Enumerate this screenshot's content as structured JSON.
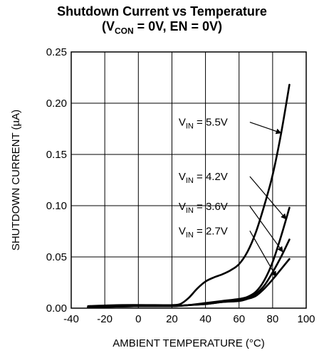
{
  "chart_data": {
    "type": "line",
    "title": "Shutdown Current vs Temperature",
    "subtitle": {
      "open": "(V",
      "sub": "CON",
      "rest": " = 0V, EN = 0V)"
    },
    "xlabel": "AMBIENT TEMPERATURE (°C)",
    "ylabel": "SHUTDOWN CURRENT (µA)",
    "xlim": [
      -40,
      100
    ],
    "ylim": [
      0,
      0.25
    ],
    "xticks": [
      -40,
      -20,
      0,
      20,
      40,
      60,
      80,
      100
    ],
    "yticks": [
      0.0,
      0.05,
      0.1,
      0.15,
      0.2,
      0.25
    ],
    "xtick_labels": [
      "-40",
      "-20",
      "0",
      "20",
      "40",
      "60",
      "80",
      "100"
    ],
    "ytick_labels": [
      "0.00",
      "0.05",
      "0.10",
      "0.15",
      "0.20",
      "0.25"
    ],
    "grid": true,
    "series": [
      {
        "name": "5.5V",
        "x": [
          -30,
          -10,
          10,
          20,
          25,
          30,
          35,
          40,
          45,
          50,
          55,
          60,
          65,
          70,
          75,
          80,
          85,
          90
        ],
        "y": [
          0.002,
          0.003,
          0.003,
          0.003,
          0.004,
          0.01,
          0.019,
          0.026,
          0.03,
          0.033,
          0.037,
          0.043,
          0.055,
          0.074,
          0.1,
          0.13,
          0.17,
          0.218
        ]
      },
      {
        "name": "4.2V",
        "x": [
          -30,
          0,
          20,
          30,
          40,
          50,
          60,
          65,
          70,
          75,
          80,
          85,
          90
        ],
        "y": [
          0.001,
          0.002,
          0.002,
          0.003,
          0.005,
          0.007,
          0.009,
          0.011,
          0.016,
          0.027,
          0.045,
          0.07,
          0.098
        ]
      },
      {
        "name": "3.6V",
        "x": [
          -30,
          0,
          20,
          30,
          40,
          50,
          60,
          65,
          70,
          75,
          80,
          85,
          90
        ],
        "y": [
          0.001,
          0.002,
          0.002,
          0.003,
          0.004,
          0.006,
          0.008,
          0.01,
          0.014,
          0.022,
          0.035,
          0.05,
          0.067
        ]
      },
      {
        "name": "2.7V",
        "x": [
          -30,
          0,
          20,
          30,
          40,
          50,
          60,
          65,
          70,
          75,
          80,
          85,
          90
        ],
        "y": [
          0.001,
          0.002,
          0.002,
          0.003,
          0.004,
          0.006,
          0.007,
          0.009,
          0.012,
          0.019,
          0.028,
          0.038,
          0.048
        ]
      }
    ],
    "annotations": [
      {
        "text_main": "V",
        "text_sub": "IN",
        "text_rest": " = 5.5V",
        "series": "5.5V",
        "label_at": [
          24,
          0.178
        ],
        "arrow_to": [
          85,
          0.171
        ]
      },
      {
        "text_main": "V",
        "text_sub": "IN",
        "text_rest": " = 4.2V",
        "series": "4.2V",
        "label_at": [
          24,
          0.125
        ],
        "arrow_to": [
          88,
          0.087
        ]
      },
      {
        "text_main": "V",
        "text_sub": "IN",
        "text_rest": " = 3.6V",
        "series": "3.6V",
        "label_at": [
          24,
          0.096
        ],
        "arrow_to": [
          86,
          0.055
        ]
      },
      {
        "text_main": "V",
        "text_sub": "IN",
        "text_rest": " = 2.7V",
        "series": "2.7V",
        "label_at": [
          24,
          0.072
        ],
        "arrow_to": [
          82,
          0.031
        ]
      }
    ]
  }
}
